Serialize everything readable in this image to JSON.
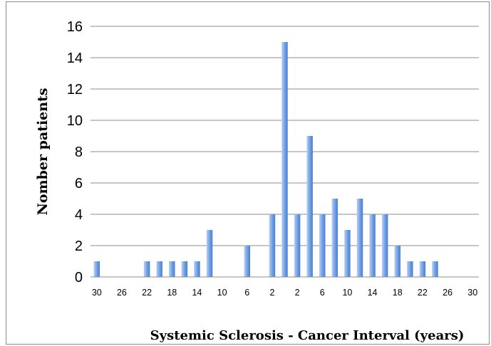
{
  "chart_data": {
    "type": "bar",
    "title": "",
    "xlabel": "Systemic Sclerosis - Cancer Interval (years)",
    "ylabel": "Nomber patients",
    "ylim": [
      0,
      16
    ],
    "yticks": [
      0,
      2,
      4,
      6,
      8,
      10,
      12,
      14,
      16
    ],
    "grid": true,
    "legend": "none",
    "bar_color": "#6f9ee3",
    "xtick_labels": [
      "30",
      "26",
      "22",
      "18",
      "14",
      "10",
      "6",
      "2",
      "2",
      "6",
      "10",
      "14",
      "18",
      "22",
      "26",
      "30"
    ],
    "categories": [
      "-30",
      "-28",
      "-26",
      "-24",
      "-22",
      "-20",
      "-18",
      "-16",
      "-14",
      "-12",
      "-10",
      "-8",
      "-6",
      "-4",
      "-2",
      "0",
      "2",
      "4",
      "6",
      "8",
      "10",
      "12",
      "14",
      "16",
      "18",
      "20",
      "22",
      "24",
      "26",
      "28",
      "30"
    ],
    "values": [
      1,
      0,
      0,
      0,
      1,
      1,
      1,
      1,
      1,
      3,
      0,
      0,
      2,
      0,
      4,
      15,
      4,
      9,
      4,
      5,
      3,
      5,
      4,
      4,
      2,
      1,
      1,
      1,
      0,
      0,
      0
    ]
  }
}
